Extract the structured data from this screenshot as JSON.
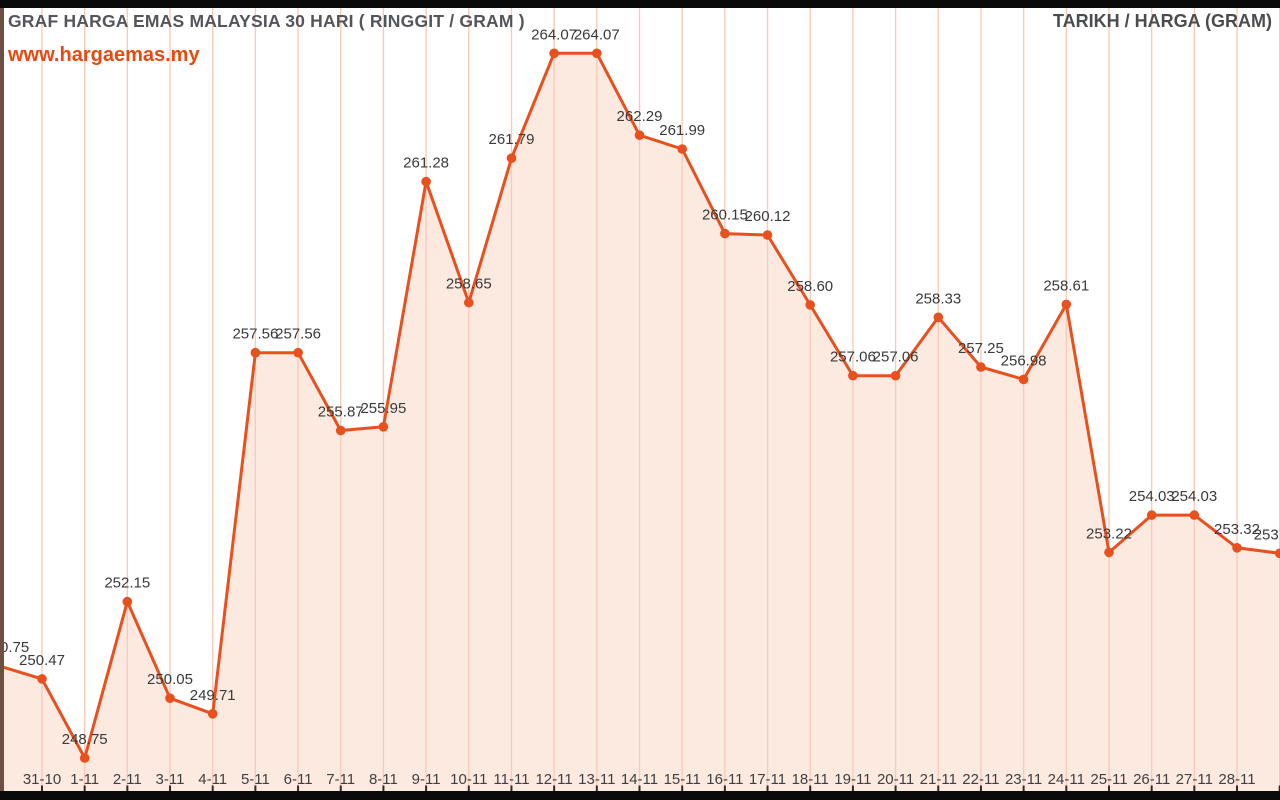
{
  "header": {
    "title": "GRAF HARGA EMAS MALAYSIA 30 HARI ( RINGGIT / GRAM )",
    "watermark": "www.hargaemas.my",
    "corner_label": "TARIKH / HARGA (GRAM)"
  },
  "colors": {
    "accent_orange": "#E8501E",
    "area_fill": "#FCEAE1",
    "gridline": "#F7CBBA",
    "title_gray": "#54555A",
    "watermark_orange": "#E8490F",
    "point_label_dark": "#3A3A3A",
    "axis_label_dark": "#3F3F3F",
    "tick_mark": "#2B2B2B",
    "frame_black": "#0A0A0A",
    "edge_strip_brown": "#6E4F44"
  },
  "chart_data": {
    "type": "area",
    "title": "GRAF HARGA EMAS MALAYSIA 30 HARI ( RINGGIT / GRAM )",
    "legend_note": "TARIKH / HARGA (GRAM)",
    "categories": [
      "31-10",
      "1-11",
      "2-11",
      "3-11",
      "4-11",
      "5-11",
      "6-11",
      "7-11",
      "8-11",
      "9-11",
      "10-11",
      "11-11",
      "12-11",
      "13-11",
      "14-11",
      "15-11",
      "16-11",
      "17-11",
      "18-11",
      "19-11",
      "20-11",
      "21-11",
      "22-11",
      "23-11",
      "24-11",
      "25-11",
      "26-11",
      "27-11",
      "28-11"
    ],
    "values": [
      250.47,
      248.75,
      252.15,
      250.05,
      249.71,
      257.56,
      257.56,
      255.87,
      255.95,
      261.28,
      258.65,
      261.79,
      264.07,
      264.07,
      262.29,
      261.99,
      260.15,
      260.12,
      258.6,
      257.06,
      257.06,
      258.33,
      257.25,
      256.98,
      258.61,
      253.22,
      254.03,
      254.03,
      253.32
    ],
    "point_labels": [
      "250.47",
      "248.75",
      "252.15",
      "250.05",
      "249.71",
      "257.56",
      "257.56",
      "255.87",
      "255.95",
      "261.28",
      "258.65",
      "261.79",
      "264.07",
      "264.07",
      "262.29",
      "261.99",
      "260.15",
      "260.12",
      "258.60",
      "257.06",
      "257.06",
      "258.33",
      "257.25",
      "256.98",
      "258.61",
      "253.22",
      "254.03",
      "254.03",
      "253.32"
    ],
    "edge_points": {
      "left": {
        "visible_label": "0.75",
        "value_est": 250.75,
        "clipped": true
      },
      "right": {
        "visible_label": "253",
        "value_est": 253.2,
        "clipped": true
      }
    },
    "xlabel": "",
    "ylabel": "",
    "ylim_implied": [
      248.0,
      265.2
    ],
    "grid": "vertical-only",
    "legend_position": "top-right"
  }
}
